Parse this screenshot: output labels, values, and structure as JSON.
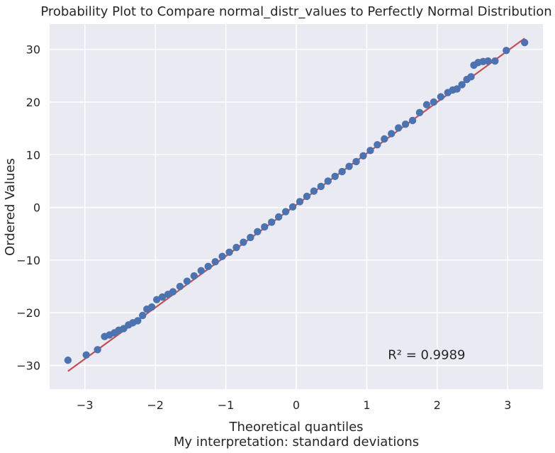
{
  "chart_data": {
    "type": "scatter",
    "title": "Probability Plot to Compare normal_distr_values to Perfectly Normal Distribution",
    "xlabel": "Theoretical quantiles",
    "xlabel_sub": "My interpretation: standard deviations",
    "ylabel": "Ordered Values",
    "xlim": [
      -3.5,
      3.5
    ],
    "ylim": [
      -34.5,
      34.8
    ],
    "x_ticks": [
      -3,
      -2,
      -1,
      0,
      1,
      2,
      3
    ],
    "y_ticks": [
      -30,
      -20,
      -10,
      0,
      10,
      20,
      30
    ],
    "x_tick_labels": [
      "−3",
      "−2",
      "−1",
      "0",
      "1",
      "2",
      "3"
    ],
    "y_tick_labels": [
      "−30",
      "−20",
      "−10",
      "0",
      "10",
      "20",
      "30"
    ],
    "grid": true,
    "background_color": "#eaeaf2",
    "point_color": "#4c72b0",
    "line_color": "#c44e52",
    "fit_line": {
      "slope": 9.75,
      "intercept": 0.5
    },
    "annotation": {
      "text": "R² = 0.9989",
      "x": 1.3,
      "y": -28
    },
    "series": [
      {
        "x": [
          -3.24,
          -2.98,
          -2.82,
          -2.72,
          -2.65,
          -2.58,
          -2.52,
          -2.45,
          -2.38,
          -2.32,
          -2.25,
          -2.18,
          -2.12,
          -2.05,
          -1.98,
          -1.9,
          -1.82,
          -1.75,
          -1.65,
          -1.55,
          -1.45,
          -1.35,
          -1.25,
          -1.15,
          -1.05,
          -0.95,
          -0.85,
          -0.75,
          -0.65,
          -0.55,
          -0.45,
          -0.35,
          -0.25,
          -0.15,
          -0.05,
          0.05,
          0.15,
          0.25,
          0.35,
          0.45,
          0.55,
          0.65,
          0.75,
          0.85,
          0.95,
          1.05,
          1.15,
          1.25,
          1.35,
          1.45,
          1.55,
          1.65,
          1.75,
          1.85,
          1.95,
          2.05,
          2.15,
          2.22,
          2.28,
          2.35,
          2.42,
          2.48,
          2.52,
          2.58,
          2.65,
          2.72,
          2.82,
          2.98,
          3.24
        ],
        "y": [
          -29,
          -28,
          -27,
          -24.5,
          -24.2,
          -23.8,
          -23.3,
          -23,
          -22.3,
          -21.9,
          -21.5,
          -20.5,
          -19.3,
          -18.9,
          -17.5,
          -17,
          -16.5,
          -16,
          -15,
          -14,
          -13,
          -12,
          -11.2,
          -10.3,
          -9.3,
          -8.5,
          -7.6,
          -6.6,
          -5.7,
          -4.6,
          -3.7,
          -2.8,
          -1.8,
          -0.8,
          0.1,
          1.1,
          2.1,
          3.1,
          4,
          5,
          5.9,
          6.8,
          7.8,
          8.7,
          9.8,
          10.8,
          11.9,
          13,
          14,
          15.1,
          15.8,
          16.5,
          18,
          19.5,
          20,
          21,
          21.8,
          22.3,
          22.5,
          23.3,
          24.3,
          24.8,
          27,
          27.5,
          27.7,
          27.8,
          27.8,
          29.8,
          31.3
        ]
      }
    ]
  }
}
